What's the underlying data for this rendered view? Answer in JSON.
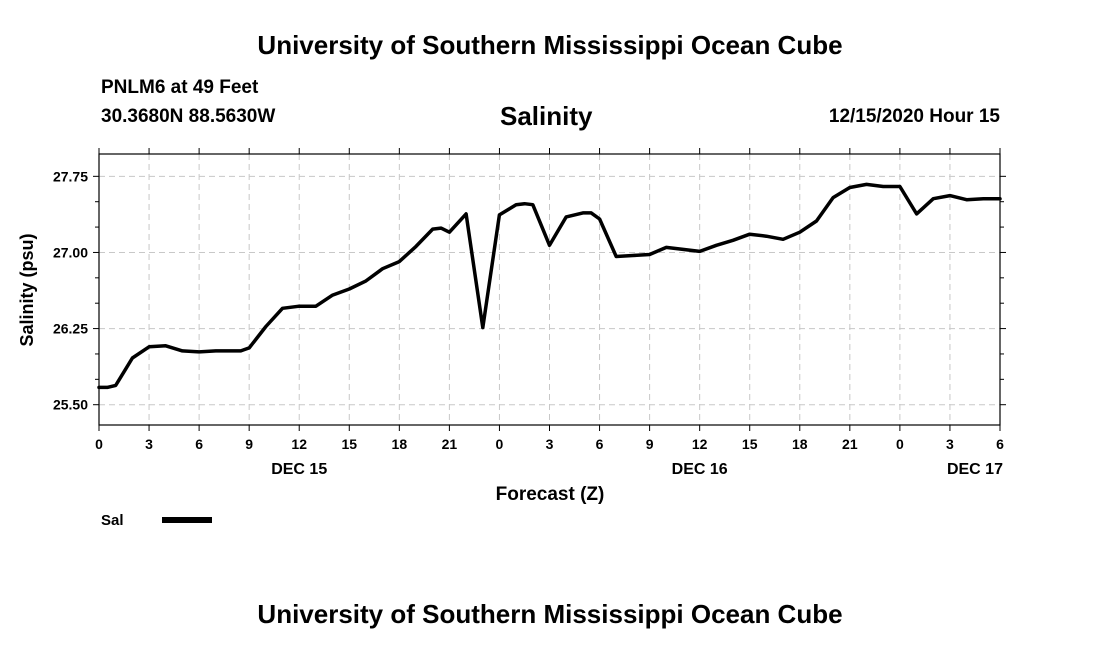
{
  "header": {
    "title": "University of Southern Mississippi Ocean Cube",
    "station": "PNLM6 at 49 Feet",
    "coords": "30.3680N 88.5630W",
    "variable": "Salinity",
    "datetime": "12/15/2020 Hour 15"
  },
  "footer": {
    "title": "University of Southern Mississippi Ocean Cube"
  },
  "chart_data": {
    "type": "line",
    "ylabel": "Salinity (psu)",
    "xlabel": "Forecast (Z)",
    "ylim": [
      25.3,
      27.97
    ],
    "xlim": [
      0,
      54
    ],
    "yticks": [
      25.5,
      25.75,
      26.0,
      26.25,
      26.5,
      26.75,
      27.0,
      27.25,
      27.5,
      27.75
    ],
    "ytick_labels": [
      {
        "value": 25.5,
        "label": "25.50"
      },
      {
        "value": 26.25,
        "label": "26.25"
      },
      {
        "value": 27.0,
        "label": "27.00"
      },
      {
        "value": 27.75,
        "label": "27.75"
      }
    ],
    "xticks": [
      {
        "x": 0,
        "label": "0"
      },
      {
        "x": 3,
        "label": "3"
      },
      {
        "x": 6,
        "label": "6"
      },
      {
        "x": 9,
        "label": "9"
      },
      {
        "x": 12,
        "label": "12"
      },
      {
        "x": 15,
        "label": "15"
      },
      {
        "x": 18,
        "label": "18"
      },
      {
        "x": 21,
        "label": "21"
      },
      {
        "x": 24,
        "label": "0"
      },
      {
        "x": 27,
        "label": "3"
      },
      {
        "x": 30,
        "label": "6"
      },
      {
        "x": 33,
        "label": "9"
      },
      {
        "x": 36,
        "label": "12"
      },
      {
        "x": 39,
        "label": "15"
      },
      {
        "x": 42,
        "label": "18"
      },
      {
        "x": 45,
        "label": "21"
      },
      {
        "x": 48,
        "label": "0"
      },
      {
        "x": 51,
        "label": "3"
      },
      {
        "x": 54,
        "label": "6"
      }
    ],
    "day_labels": [
      {
        "x": 12,
        "label": "DEC 15"
      },
      {
        "x": 36,
        "label": "DEC 16"
      },
      {
        "x": 52.5,
        "label": "DEC 17"
      }
    ],
    "grid": true,
    "legend": {
      "position": "bottom-left",
      "label": "Sal"
    },
    "series": [
      {
        "name": "Sal",
        "color": "#000000",
        "x": [
          0,
          0.5,
          1,
          2,
          3,
          4,
          5,
          6,
          7,
          8,
          8.5,
          9,
          10,
          11,
          12,
          13,
          14,
          15,
          16,
          17,
          18,
          19,
          20,
          20.5,
          21,
          22,
          23,
          24,
          25,
          25.5,
          26,
          27,
          28,
          29,
          29.5,
          30,
          31,
          32,
          33,
          34,
          35,
          36,
          37,
          38,
          39,
          40,
          41,
          42,
          43,
          44,
          45,
          46,
          47,
          48,
          49,
          50,
          51,
          52,
          53,
          54
        ],
        "y": [
          25.67,
          25.67,
          25.69,
          25.96,
          26.07,
          26.08,
          26.03,
          26.02,
          26.03,
          26.03,
          26.03,
          26.06,
          26.27,
          26.45,
          26.47,
          26.47,
          26.58,
          26.64,
          26.72,
          26.84,
          26.91,
          27.06,
          27.23,
          27.24,
          27.2,
          27.38,
          26.26,
          27.37,
          27.47,
          27.48,
          27.47,
          27.07,
          27.35,
          27.39,
          27.39,
          27.33,
          26.96,
          26.97,
          26.98,
          27.05,
          27.03,
          27.01,
          27.07,
          27.12,
          27.18,
          27.16,
          27.13,
          27.2,
          27.31,
          27.54,
          27.64,
          27.67,
          27.65,
          27.65,
          27.38,
          27.53,
          27.56,
          27.52,
          27.53,
          27.53
        ]
      }
    ]
  }
}
